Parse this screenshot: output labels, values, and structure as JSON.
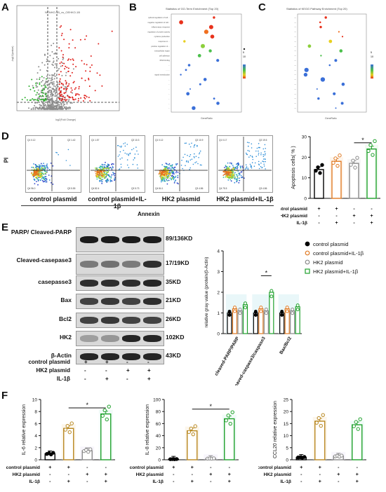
{
  "panels": {
    "A": {
      "label": "A",
      "title": "NCNHO-1B_vs_OEHKO-1B",
      "xlabel": "log2(Fold Change)",
      "ylabel": "-log10(pvalue)"
    },
    "B": {
      "label": "B",
      "title": "Statistics of GO-Term Enrichment (Top 20)",
      "xlabel": "GeneRatio",
      "terms": [
        "spliced-regulation of cell ...",
        "negative regulation of cell...",
        "inflammatory response",
        "regulation of protein activity",
        "cytokine production",
        "response to ...",
        "positive regulation of ...",
        "extracellular region",
        "cell adhesion",
        "RNA binding",
        "...",
        ".. .. ..",
        "signal transduction",
        "...",
        "...",
        "...",
        "...",
        "...",
        "...",
        "..."
      ],
      "legend_count": [
        "5",
        "10",
        "15"
      ],
      "legend_p": [
        "p.adj",
        "0.01",
        "0.02",
        "0.03"
      ],
      "x_ticks": [
        "0.05",
        "0.10",
        "0.15"
      ]
    },
    "C": {
      "label": "C",
      "title": "Statistics of KEGG Pathway Enrichment (Top 20)",
      "xlabel": "GeneRatio",
      "legend_count": [
        "5",
        "10",
        "15"
      ],
      "legend_p": [
        "p.adj",
        "0.01",
        "0.02",
        "0.03"
      ],
      "x_ticks": [
        "0.05",
        "0.10",
        "0.15"
      ]
    },
    "D": {
      "label": "D",
      "ylab": "PI",
      "xlab": "Annexin",
      "flow": [
        {
          "name": "control plasmid",
          "q": [
            "Q1 0.12",
            "Q2 1.42",
            "Q3 5.55",
            "Q4 96.0"
          ]
        },
        {
          "name": "control plasmid+IL-1β",
          "q": [
            "Q1 1.57",
            "Q2 10.3",
            "Q3 5.73",
            "Q4 82.4"
          ]
        },
        {
          "name": "HK2 plasmid",
          "q": [
            "Q1 0.12",
            "Q2 10.9",
            "Q3 4.86",
            "Q4 84.1"
          ]
        },
        {
          "name": "HK2 plasmid+IL-1β",
          "q": [
            "Q1 0.17",
            "Q2 19.5",
            "Q3 4.86",
            "Q4 75.5"
          ]
        }
      ],
      "bar_ylabel": "Apoptosis cells( % )"
    },
    "E": {
      "label": "E",
      "blots": [
        {
          "name": "PARP/ Cleaved-PARP",
          "kd": "89/136KD"
        },
        {
          "name": "Cleaved-casepase3",
          "kd": "17/19KD"
        },
        {
          "name": "casepasse3",
          "kd": "35KD"
        },
        {
          "name": "Bax",
          "kd": "21KD"
        },
        {
          "name": "Bcl2",
          "kd": "26KD"
        },
        {
          "name": "HK2",
          "kd": "102KD"
        },
        {
          "name": "β-Actin",
          "kd": "43KD"
        }
      ],
      "legend": [
        "control plasmid",
        "control plasmid+IL-1β",
        "HK2 plasmid",
        "HK2 plasmid+IL-1β"
      ],
      "ylabel": "relative gray value (protein/β-Actin)"
    },
    "F": {
      "label": "F",
      "ylabels": [
        "IL-6 relative expression",
        "IL-8 relative expression",
        "CCL20 relative expression"
      ]
    }
  },
  "conditions": {
    "rows": [
      "control plasmid",
      "HK2 plasmid",
      "IL-1β"
    ],
    "signs": [
      [
        "+",
        "+",
        "-",
        "-"
      ],
      [
        "-",
        "-",
        "+",
        "+"
      ],
      [
        "-",
        "+",
        "-",
        "+"
      ]
    ]
  },
  "stat_mark": "*",
  "colors": {
    "c1": "#000000",
    "c2": "#e07a23",
    "c3": "#8a8a8a",
    "c4": "#1fa12c",
    "b2": "#b8871f",
    "b4": "#1fa12c"
  },
  "chart_data": [
    {
      "type": "bar",
      "id": "D-apoptosis",
      "categories": [
        "control plasmid",
        "control plasmid+IL-1β",
        "HK2 plasmid",
        "HK2 plasmid+IL-1β"
      ],
      "values": [
        14,
        18,
        17,
        24
      ],
      "ylim": [
        0,
        30
      ],
      "y_ticks": [
        "0",
        "10",
        "20",
        "30"
      ],
      "ylabel": "Apoptosis cells( % )"
    },
    {
      "type": "bar",
      "id": "E-quant",
      "categories": [
        "cleaved-PARP/PARP",
        "cleaved-caspase3/caspase3",
        "Bax/Bcl2"
      ],
      "series": [
        {
          "name": "control plasmid",
          "values": [
            1.0,
            1.0,
            1.0
          ]
        },
        {
          "name": "control plasmid+IL-1β",
          "values": [
            1.2,
            1.2,
            1.2
          ]
        },
        {
          "name": "HK2 plasmid",
          "values": [
            1.1,
            1.1,
            1.1
          ]
        },
        {
          "name": "HK2 plasmid+IL-1β",
          "values": [
            1.4,
            2.0,
            1.3
          ]
        }
      ],
      "ylim": [
        0,
        4
      ],
      "y_ticks": [
        "0",
        "1",
        "2",
        "3",
        "4"
      ]
    },
    {
      "type": "bar",
      "id": "F-IL6",
      "categories": [
        "c",
        "c+IL",
        "H",
        "H+IL"
      ],
      "values": [
        1,
        5.2,
        1.5,
        7.6
      ],
      "ylim": [
        0,
        10
      ],
      "y_ticks": [
        "0",
        "2",
        "4",
        "6",
        "8",
        "10"
      ]
    },
    {
      "type": "bar",
      "id": "F-IL8",
      "categories": [
        "c",
        "c+IL",
        "H",
        "H+IL"
      ],
      "values": [
        1,
        48,
        2,
        68
      ],
      "ylim": [
        0,
        100
      ],
      "y_ticks": [
        "0",
        "20",
        "40",
        "60",
        "80",
        "100"
      ]
    },
    {
      "type": "bar",
      "id": "F-CCL20",
      "categories": [
        "c",
        "c+IL",
        "H",
        "H+IL"
      ],
      "values": [
        1,
        16,
        1.5,
        14.5
      ],
      "ylim": [
        0,
        25
      ],
      "y_ticks": [
        "0",
        "5",
        "10",
        "15",
        "20",
        "25"
      ]
    }
  ]
}
